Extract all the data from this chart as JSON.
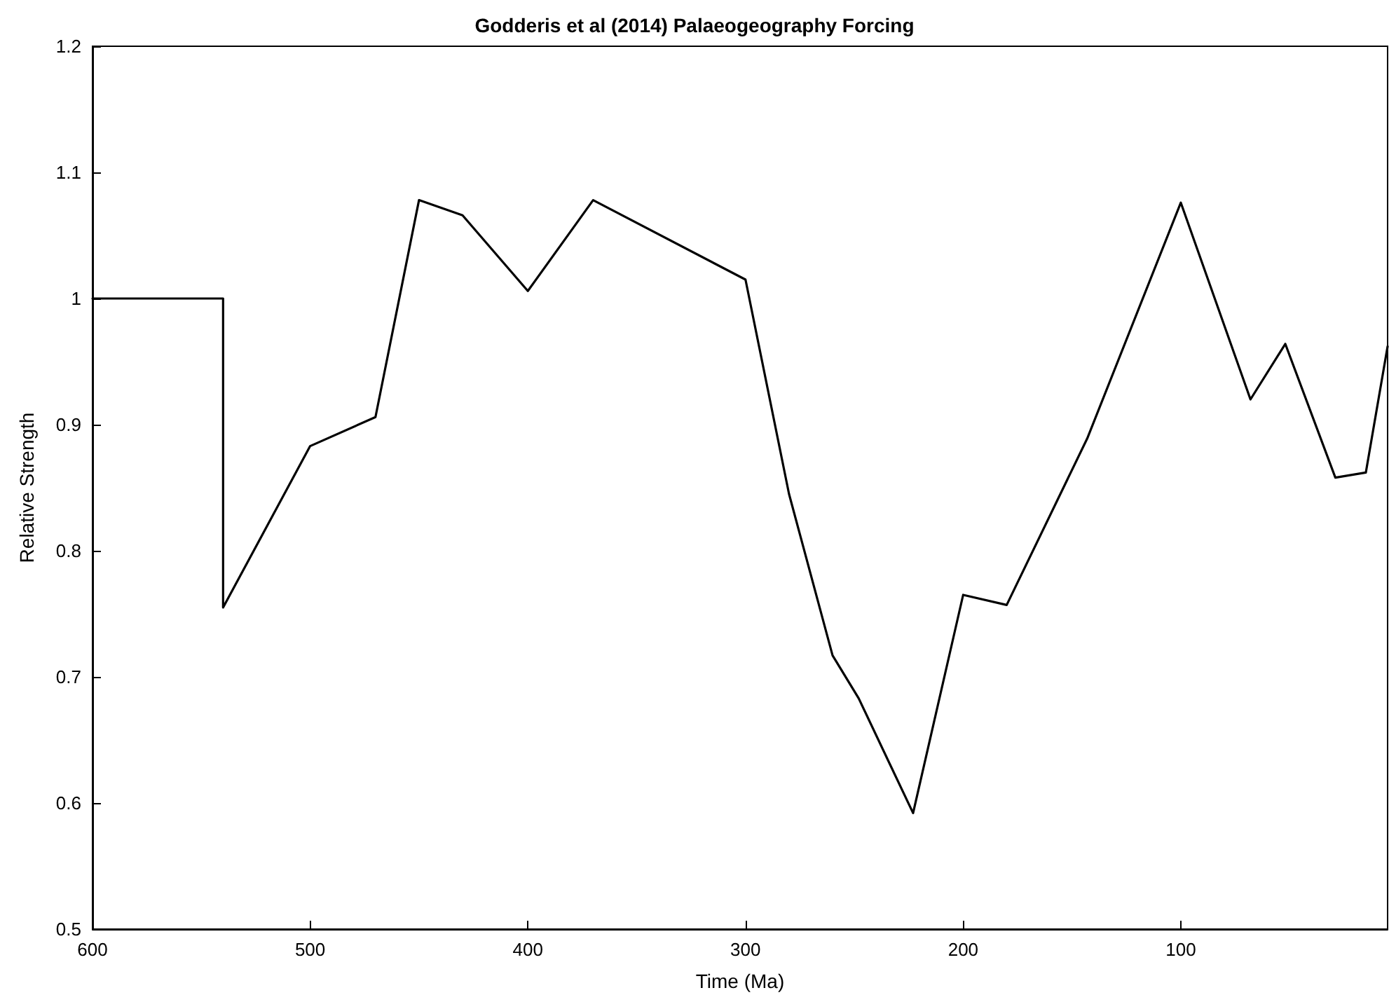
{
  "chart_data": {
    "type": "line",
    "title": "Godderis et al (2014) Palaeogeography Forcing",
    "xlabel": "Time (Ma)",
    "ylabel": "Relative Strength",
    "x": [
      600,
      540,
      540,
      500,
      470,
      450,
      430,
      400,
      370,
      300,
      280,
      260,
      248,
      223,
      200,
      180,
      143,
      100,
      68,
      52,
      29,
      15,
      5
    ],
    "series": [
      {
        "color": "#000000",
        "values": [
          1.0,
          1.0,
          0.755,
          0.883,
          0.906,
          1.078,
          1.066,
          1.006,
          1.078,
          1.015,
          0.845,
          0.717,
          0.683,
          0.592,
          0.765,
          0.757,
          0.889,
          1.076,
          0.92,
          0.964,
          0.858,
          0.862,
          0.962
        ]
      }
    ],
    "xlim": [
      600,
      5
    ],
    "xticks": [
      600,
      500,
      400,
      300,
      200,
      100
    ],
    "ylim": [
      0.5,
      1.2
    ],
    "yticks": [
      0.5,
      0.6,
      0.7,
      0.8,
      0.9,
      1,
      1.1,
      1.2
    ],
    "grid": false,
    "marker": "none",
    "line_style": "solid"
  }
}
